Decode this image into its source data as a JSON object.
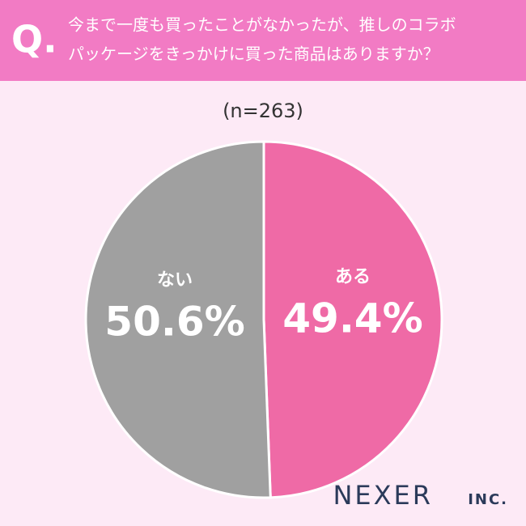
{
  "chart_data": {
    "type": "pie",
    "question_mark": "Q.",
    "title_lines": [
      "今まで一度も買ったことがなかったが、推しのコラボ",
      "パッケージをきっかけに買った商品はありますか？"
    ],
    "subtitle": "(n=263)",
    "categories": [
      "ある",
      "ない"
    ],
    "values": [
      49.4,
      50.6
    ],
    "value_labels": [
      "49.4%",
      "50.6%"
    ],
    "colors": [
      "#ef6aa6",
      "#a0a0a0"
    ],
    "brand": "NEXER",
    "brand_suffix": "INC."
  }
}
